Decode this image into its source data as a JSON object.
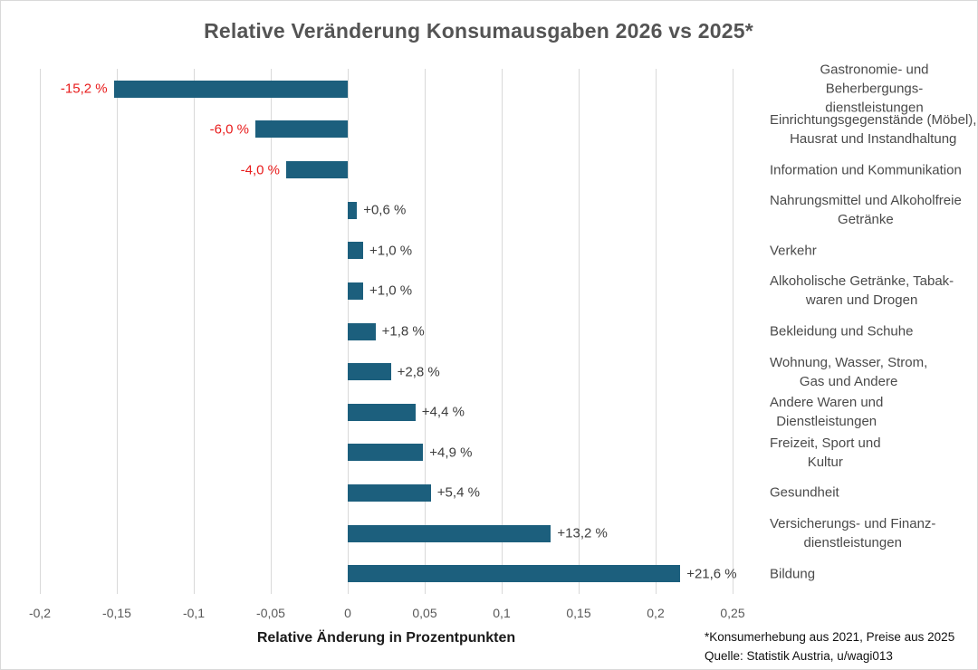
{
  "title": "Relative Veränderung Konsumausgaben 2026 vs 2025*",
  "x_axis_title": "Relative Änderung in Prozentpunkten",
  "footnote": {
    "line1": "*Konsumerhebung aus 2021, Preise aus 2025",
    "line2": "Quelle: Statistik Austria, u/wagi013"
  },
  "colors": {
    "bar": "#1c5f7d",
    "negative_value_label": "#e81b1b",
    "positive_value_label": "#3d3d3d",
    "category_label": "#4a4a4a",
    "title": "#545454",
    "gridline": "#d9d9d9",
    "tick_label": "#595959"
  },
  "chart_data": {
    "type": "bar",
    "orientation": "horizontal",
    "title": "Relative Veränderung Konsumausgaben 2026 vs 2025*",
    "xlabel": "Relative Änderung in Prozentpunkten",
    "xlim": [
      -0.2,
      0.25
    ],
    "grid": "vertical",
    "legend": "none",
    "tick_labels": [
      "-0,2",
      "-0,15",
      "-0,1",
      "-0,05",
      "0",
      "0,05",
      "0,1",
      "0,15",
      "0,2",
      "0,25"
    ],
    "tick_values": [
      -0.2,
      -0.15,
      -0.1,
      -0.05,
      0,
      0.05,
      0.1,
      0.15,
      0.2,
      0.25
    ],
    "categories": [
      "Gastronomie- und Beherbergungs-\ndienstleistungen",
      "Einrichtungsgegenstände (Möbel),\nHausrat und Instandhaltung",
      "Information und Kommunikation",
      "Nahrungsmittel und Alkoholfreie\nGetränke",
      "Verkehr",
      "Alkoholische Getränke, Tabak-\nwaren und Drogen",
      "Bekleidung und Schuhe",
      "Wohnung, Wasser, Strom,\nGas und Andere",
      "Andere Waren und\nDienstleistungen",
      "Freizeit, Sport und\nKultur",
      "Gesundheit",
      "Versicherungs- und Finanz-\ndienstleistungen",
      "Bildung"
    ],
    "values_percent": [
      -15.2,
      -6.0,
      -4.0,
      0.6,
      1.0,
      1.0,
      1.8,
      2.8,
      4.4,
      4.9,
      5.4,
      13.2,
      21.6
    ],
    "values_axis_units": [
      -0.152,
      -0.06,
      -0.04,
      0.006,
      0.01,
      0.01,
      0.018,
      0.028,
      0.044,
      0.049,
      0.054,
      0.132,
      0.216
    ],
    "value_labels": [
      "-15,2 %",
      "-6,0 %",
      "-4,0 %",
      "+0,6 %",
      "+1,0 %",
      "+1,0 %",
      "+1,8 %",
      "+2,8 %",
      "+4,4 %",
      "+4,9 %",
      "+5,4 %",
      "+13,2 %",
      "+21,6 %"
    ]
  }
}
